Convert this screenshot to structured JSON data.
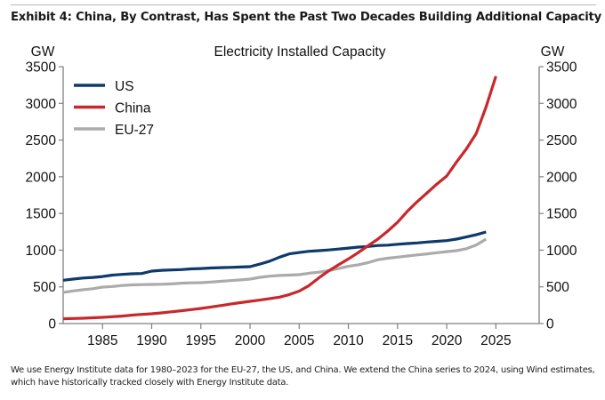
{
  "header": {
    "title": "Exhibit 4: China, By Contrast, Has Spent the Past Two Decades Building Additional Capacity"
  },
  "footnote": "We use Energy Institute data for 1980–2023 for the EU-27, the US, and China. We extend the China series to 2024, using Wind estimates, which have historically tracked closely with Energy Institute data.",
  "colors": {
    "us": "#0d3a6b",
    "china": "#c8282c",
    "eu27": "#ababab",
    "axis": "#7f7f7f"
  },
  "chart_data": {
    "type": "line",
    "title": "Electricity Installed Capacity",
    "xlabel": "",
    "ylabel_left": "GW",
    "ylabel_right": "GW",
    "ylim": [
      0,
      3500
    ],
    "yticks": [
      0,
      500,
      1000,
      1500,
      2000,
      2500,
      3000,
      3500
    ],
    "xticks": [
      1985,
      1990,
      1995,
      2000,
      2005,
      2010,
      2015,
      2020,
      2025
    ],
    "xlim": [
      1981,
      2029.4
    ],
    "grid": false,
    "legend_position": "top-left",
    "x": [
      1980,
      1981,
      1982,
      1983,
      1984,
      1985,
      1986,
      1987,
      1988,
      1989,
      1990,
      1991,
      1992,
      1993,
      1994,
      1995,
      1996,
      1997,
      1998,
      1999,
      2000,
      2001,
      2002,
      2003,
      2004,
      2005,
      2006,
      2007,
      2008,
      2009,
      2010,
      2011,
      2012,
      2013,
      2014,
      2015,
      2016,
      2017,
      2018,
      2019,
      2020,
      2021,
      2022,
      2023,
      2024
    ],
    "series": [
      {
        "name": "US",
        "key": "us",
        "values": [
          590,
          605,
          620,
          628,
          641,
          660,
          670,
          678,
          682,
          715,
          725,
          730,
          735,
          745,
          750,
          757,
          762,
          765,
          770,
          775,
          810,
          850,
          905,
          950,
          968,
          985,
          993,
          1003,
          1015,
          1028,
          1041,
          1050,
          1063,
          1068,
          1080,
          1090,
          1098,
          1110,
          1120,
          1130,
          1150,
          1180,
          1210,
          1247,
          null
        ]
      },
      {
        "name": "China",
        "key": "china",
        "values": [
          66,
          69,
          73,
          79,
          85,
          93,
          102,
          115,
          125,
          133,
          145,
          160,
          175,
          190,
          206,
          225,
          245,
          265,
          285,
          303,
          320,
          340,
          360,
          395,
          442,
          517,
          623,
          718,
          800,
          880,
          966,
          1060,
          1150,
          1260,
          1380,
          1530,
          1660,
          1780,
          1900,
          2010,
          2200,
          2380,
          2590,
          2950,
          3370
        ]
      },
      {
        "name": "EU-27",
        "key": "eu27",
        "values": [
          425,
          445,
          460,
          475,
          496,
          505,
          518,
          527,
          531,
          533,
          535,
          540,
          550,
          555,
          557,
          565,
          575,
          585,
          595,
          605,
          630,
          645,
          655,
          660,
          666,
          685,
          700,
          720,
          750,
          780,
          800,
          830,
          870,
          890,
          905,
          920,
          935,
          950,
          965,
          980,
          993,
          1020,
          1070,
          1150,
          null
        ]
      }
    ]
  }
}
